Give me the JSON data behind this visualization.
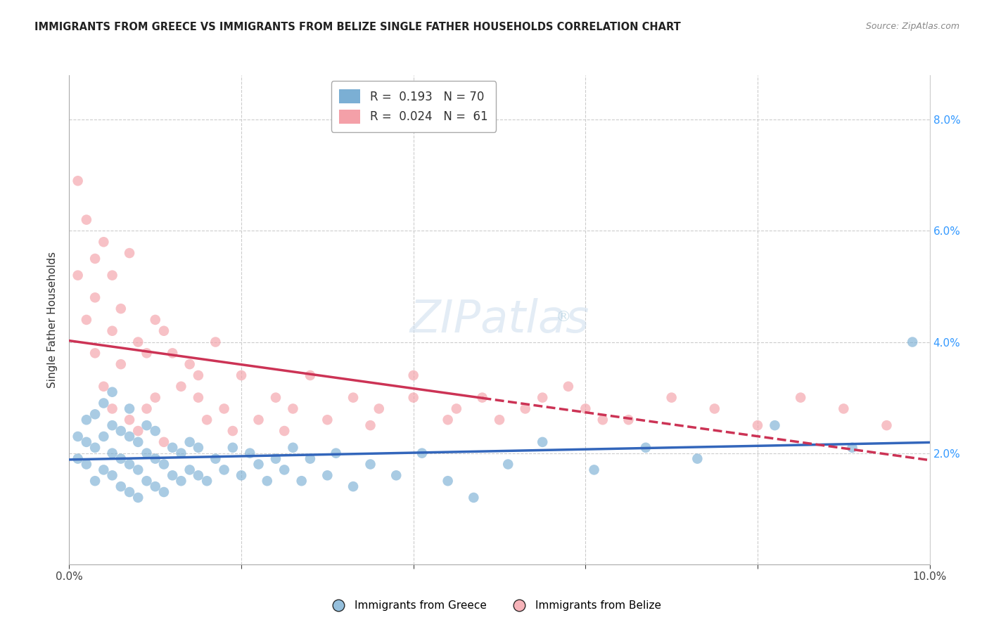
{
  "title": "IMMIGRANTS FROM GREECE VS IMMIGRANTS FROM BELIZE SINGLE FATHER HOUSEHOLDS CORRELATION CHART",
  "source": "Source: ZipAtlas.com",
  "ylabel": "Single Father Households",
  "xlim": [
    0.0,
    0.1
  ],
  "ylim": [
    0.0,
    0.088
  ],
  "greece_R": 0.193,
  "greece_N": 70,
  "belize_R": 0.024,
  "belize_N": 61,
  "greece_color": "#7BAFD4",
  "belize_color": "#F4A0A8",
  "greece_line_color": "#3366BB",
  "belize_line_color": "#CC3355",
  "greece_scatter_x": [
    0.001,
    0.001,
    0.002,
    0.002,
    0.002,
    0.003,
    0.003,
    0.003,
    0.004,
    0.004,
    0.004,
    0.005,
    0.005,
    0.005,
    0.005,
    0.006,
    0.006,
    0.006,
    0.007,
    0.007,
    0.007,
    0.007,
    0.008,
    0.008,
    0.008,
    0.009,
    0.009,
    0.009,
    0.01,
    0.01,
    0.01,
    0.011,
    0.011,
    0.012,
    0.012,
    0.013,
    0.013,
    0.014,
    0.014,
    0.015,
    0.015,
    0.016,
    0.017,
    0.018,
    0.019,
    0.02,
    0.021,
    0.022,
    0.023,
    0.024,
    0.025,
    0.026,
    0.027,
    0.028,
    0.03,
    0.031,
    0.033,
    0.035,
    0.038,
    0.041,
    0.044,
    0.047,
    0.051,
    0.055,
    0.061,
    0.067,
    0.073,
    0.082,
    0.091,
    0.098
  ],
  "greece_scatter_y": [
    0.019,
    0.023,
    0.018,
    0.022,
    0.026,
    0.015,
    0.021,
    0.027,
    0.017,
    0.023,
    0.029,
    0.016,
    0.02,
    0.025,
    0.031,
    0.014,
    0.019,
    0.024,
    0.013,
    0.018,
    0.023,
    0.028,
    0.012,
    0.017,
    0.022,
    0.015,
    0.02,
    0.025,
    0.014,
    0.019,
    0.024,
    0.013,
    0.018,
    0.016,
    0.021,
    0.015,
    0.02,
    0.017,
    0.022,
    0.016,
    0.021,
    0.015,
    0.019,
    0.017,
    0.021,
    0.016,
    0.02,
    0.018,
    0.015,
    0.019,
    0.017,
    0.021,
    0.015,
    0.019,
    0.016,
    0.02,
    0.014,
    0.018,
    0.016,
    0.02,
    0.015,
    0.012,
    0.018,
    0.022,
    0.017,
    0.021,
    0.019,
    0.025,
    0.021,
    0.04
  ],
  "belize_scatter_x": [
    0.001,
    0.001,
    0.002,
    0.002,
    0.003,
    0.003,
    0.003,
    0.004,
    0.004,
    0.005,
    0.005,
    0.005,
    0.006,
    0.006,
    0.007,
    0.007,
    0.008,
    0.008,
    0.009,
    0.009,
    0.01,
    0.01,
    0.011,
    0.011,
    0.012,
    0.013,
    0.014,
    0.015,
    0.016,
    0.017,
    0.018,
    0.019,
    0.02,
    0.022,
    0.024,
    0.026,
    0.028,
    0.03,
    0.033,
    0.036,
    0.04,
    0.044,
    0.048,
    0.053,
    0.058,
    0.062,
    0.04,
    0.045,
    0.05,
    0.055,
    0.06,
    0.065,
    0.07,
    0.075,
    0.08,
    0.085,
    0.09,
    0.095,
    0.015,
    0.025,
    0.035
  ],
  "belize_scatter_y": [
    0.069,
    0.052,
    0.062,
    0.044,
    0.055,
    0.038,
    0.048,
    0.058,
    0.032,
    0.042,
    0.028,
    0.052,
    0.036,
    0.046,
    0.056,
    0.026,
    0.04,
    0.024,
    0.038,
    0.028,
    0.044,
    0.03,
    0.042,
    0.022,
    0.038,
    0.032,
    0.036,
    0.03,
    0.026,
    0.04,
    0.028,
    0.024,
    0.034,
    0.026,
    0.03,
    0.028,
    0.034,
    0.026,
    0.03,
    0.028,
    0.034,
    0.026,
    0.03,
    0.028,
    0.032,
    0.026,
    0.03,
    0.028,
    0.026,
    0.03,
    0.028,
    0.026,
    0.03,
    0.028,
    0.025,
    0.03,
    0.028,
    0.025,
    0.034,
    0.024,
    0.025
  ]
}
